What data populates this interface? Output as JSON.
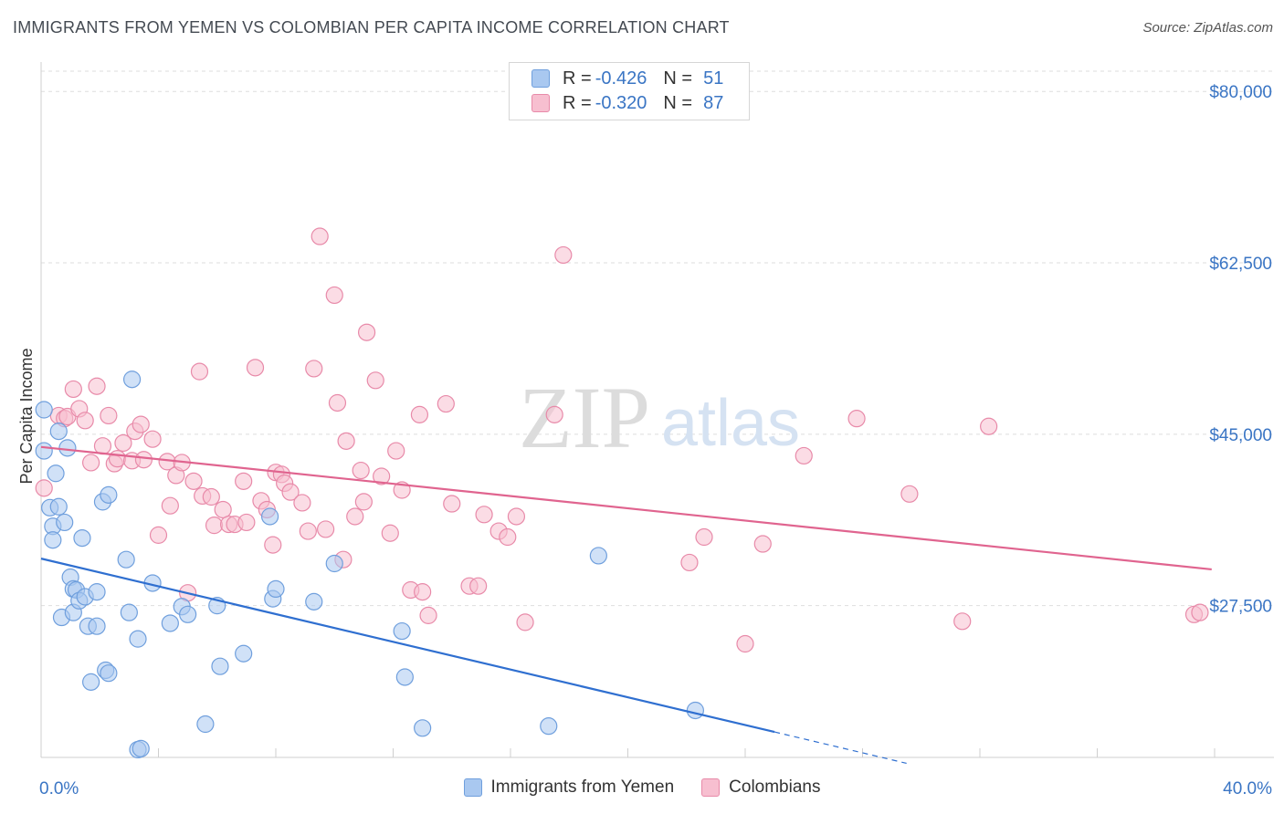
{
  "title": "IMMIGRANTS FROM YEMEN VS COLOMBIAN PER CAPITA INCOME CORRELATION CHART",
  "source": "Source: ZipAtlas.com",
  "watermark": {
    "zip": "ZIP",
    "atlas": "atlas"
  },
  "colors": {
    "yemen_fill": "#a9c8f0",
    "yemen_stroke": "#6f9fdd",
    "yemen_line": "#2f6fd0",
    "colombian_fill": "#f7bfd0",
    "colombian_stroke": "#e88aa9",
    "colombian_line": "#e0648f",
    "axis_label": "#3a75c4",
    "grid": "#dedede"
  },
  "legend": {
    "rows": [
      {
        "r_label": "R =",
        "r_value": "-0.426",
        "n_label": "N =",
        "n_value": "51"
      },
      {
        "r_label": "R =",
        "r_value": "-0.320",
        "n_label": "N =",
        "n_value": "87"
      }
    ]
  },
  "bottom_legend": {
    "series1": "Immigrants from Yemen",
    "series2": "Colombians"
  },
  "chart_data": {
    "type": "scatter",
    "ylabel": "Per Capita Income",
    "x_tick_labels": {
      "min": "0.0%",
      "max": "40.0%"
    },
    "xlim": [
      0,
      40
    ],
    "ylim": [
      12000,
      83000
    ],
    "y_ticks": [
      {
        "value": 80000,
        "label": "$80,000"
      },
      {
        "value": 62500,
        "label": "$62,500"
      },
      {
        "value": 45000,
        "label": "$45,000"
      },
      {
        "value": 27500,
        "label": "$27,500"
      }
    ],
    "series": [
      {
        "name": "Immigrants from Yemen",
        "trend": {
          "x0": 0,
          "y0": 32300,
          "x1": 25,
          "y1": 14600,
          "dash_to_x": 29.5,
          "dash_to_y": 11400
        },
        "points": [
          [
            0.1,
            47500
          ],
          [
            0.1,
            43300
          ],
          [
            0.3,
            37500
          ],
          [
            0.4,
            35600
          ],
          [
            0.4,
            34200
          ],
          [
            0.5,
            41000
          ],
          [
            0.6,
            37600
          ],
          [
            0.6,
            45300
          ],
          [
            0.7,
            26300
          ],
          [
            0.8,
            36000
          ],
          [
            0.9,
            43600
          ],
          [
            1.0,
            30400
          ],
          [
            1.1,
            29200
          ],
          [
            1.1,
            26800
          ],
          [
            1.2,
            29100
          ],
          [
            1.3,
            28000
          ],
          [
            1.4,
            34400
          ],
          [
            1.5,
            28400
          ],
          [
            1.6,
            25400
          ],
          [
            1.7,
            19700
          ],
          [
            1.9,
            25400
          ],
          [
            1.9,
            28900
          ],
          [
            2.1,
            38100
          ],
          [
            2.2,
            20900
          ],
          [
            2.3,
            20600
          ],
          [
            2.3,
            38800
          ],
          [
            2.9,
            32200
          ],
          [
            3.0,
            26800
          ],
          [
            3.1,
            50600
          ],
          [
            3.3,
            24100
          ],
          [
            3.3,
            12800
          ],
          [
            3.4,
            12900
          ],
          [
            3.8,
            29800
          ],
          [
            4.4,
            25700
          ],
          [
            4.8,
            27400
          ],
          [
            5.0,
            26600
          ],
          [
            5.6,
            15400
          ],
          [
            6.0,
            27500
          ],
          [
            6.1,
            21300
          ],
          [
            6.9,
            22600
          ],
          [
            7.8,
            36600
          ],
          [
            7.9,
            28200
          ],
          [
            8.0,
            29200
          ],
          [
            9.3,
            27900
          ],
          [
            10.0,
            31800
          ],
          [
            12.3,
            24900
          ],
          [
            12.4,
            20200
          ],
          [
            13.0,
            15000
          ],
          [
            17.3,
            15200
          ],
          [
            19.0,
            32600
          ],
          [
            22.3,
            16800
          ]
        ]
      },
      {
        "name": "Colombians",
        "trend": {
          "x0": 0,
          "y0": 43700,
          "x1": 39.9,
          "y1": 31200
        },
        "points": [
          [
            0.1,
            39500
          ],
          [
            0.6,
            46900
          ],
          [
            0.8,
            46600
          ],
          [
            0.9,
            46800
          ],
          [
            1.1,
            49600
          ],
          [
            1.3,
            47600
          ],
          [
            1.5,
            46400
          ],
          [
            1.7,
            42100
          ],
          [
            1.9,
            49900
          ],
          [
            2.1,
            43800
          ],
          [
            2.3,
            46900
          ],
          [
            2.5,
            42000
          ],
          [
            2.6,
            42500
          ],
          [
            2.8,
            44100
          ],
          [
            3.1,
            42300
          ],
          [
            3.2,
            45300
          ],
          [
            3.4,
            46000
          ],
          [
            3.5,
            42400
          ],
          [
            3.8,
            44500
          ],
          [
            4.0,
            34700
          ],
          [
            4.3,
            42200
          ],
          [
            4.4,
            37700
          ],
          [
            4.6,
            40800
          ],
          [
            4.8,
            42100
          ],
          [
            5.0,
            28800
          ],
          [
            5.2,
            40200
          ],
          [
            5.4,
            51400
          ],
          [
            5.5,
            38700
          ],
          [
            5.8,
            38600
          ],
          [
            5.9,
            35700
          ],
          [
            6.2,
            37300
          ],
          [
            6.4,
            35800
          ],
          [
            6.6,
            35800
          ],
          [
            6.9,
            40200
          ],
          [
            7.0,
            36000
          ],
          [
            7.3,
            51800
          ],
          [
            7.5,
            38200
          ],
          [
            7.7,
            37300
          ],
          [
            7.9,
            33700
          ],
          [
            8.0,
            41100
          ],
          [
            8.2,
            40900
          ],
          [
            8.3,
            40000
          ],
          [
            8.5,
            39100
          ],
          [
            8.9,
            38000
          ],
          [
            9.1,
            35100
          ],
          [
            9.3,
            51700
          ],
          [
            9.5,
            65200
          ],
          [
            9.7,
            35300
          ],
          [
            10.0,
            59200
          ],
          [
            10.1,
            48200
          ],
          [
            10.3,
            32200
          ],
          [
            10.4,
            44300
          ],
          [
            10.7,
            36600
          ],
          [
            10.9,
            41300
          ],
          [
            11.0,
            38100
          ],
          [
            11.1,
            55400
          ],
          [
            11.4,
            50500
          ],
          [
            11.6,
            40700
          ],
          [
            11.9,
            34900
          ],
          [
            12.1,
            43300
          ],
          [
            12.3,
            39300
          ],
          [
            12.6,
            29100
          ],
          [
            12.9,
            47000
          ],
          [
            13.0,
            28900
          ],
          [
            13.2,
            26500
          ],
          [
            13.8,
            48100
          ],
          [
            14.0,
            37900
          ],
          [
            14.6,
            29500
          ],
          [
            14.9,
            29500
          ],
          [
            15.1,
            36800
          ],
          [
            15.6,
            35100
          ],
          [
            15.9,
            34500
          ],
          [
            16.2,
            36600
          ],
          [
            16.5,
            25800
          ],
          [
            17.5,
            47000
          ],
          [
            17.8,
            63300
          ],
          [
            22.1,
            31900
          ],
          [
            22.6,
            34500
          ],
          [
            24.0,
            23600
          ],
          [
            24.6,
            33800
          ],
          [
            26.0,
            42800
          ],
          [
            27.8,
            46600
          ],
          [
            29.6,
            38900
          ],
          [
            31.4,
            25900
          ],
          [
            32.3,
            45800
          ],
          [
            39.3,
            26600
          ],
          [
            39.5,
            26800
          ]
        ]
      }
    ]
  }
}
